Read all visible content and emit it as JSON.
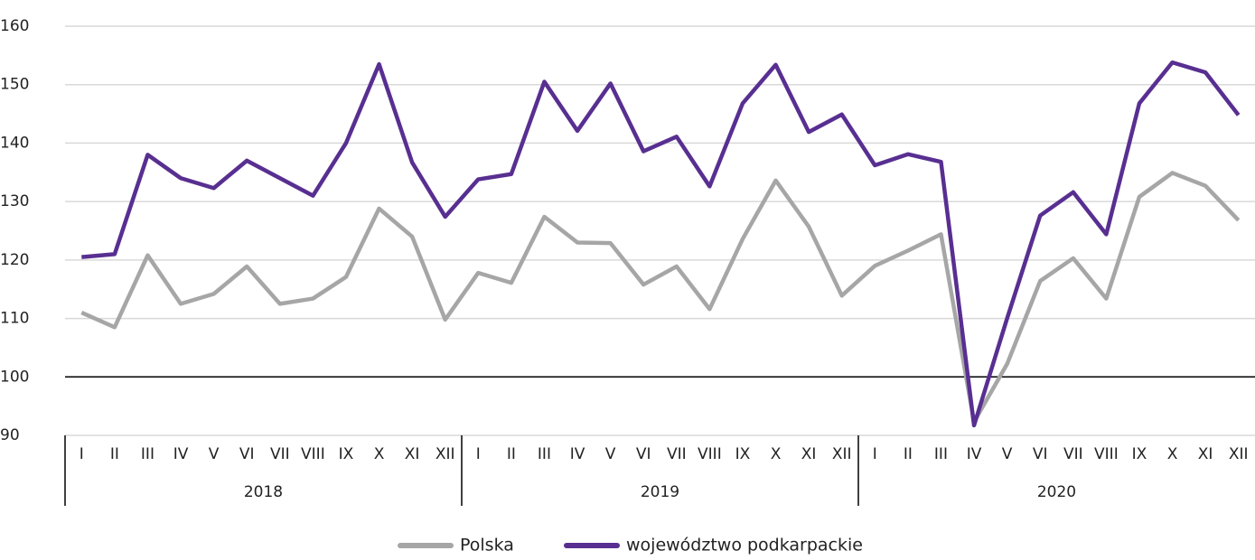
{
  "chart_data": {
    "type": "line",
    "categories": [
      "I",
      "II",
      "III",
      "IV",
      "V",
      "VI",
      "VII",
      "VIII",
      "IX",
      "X",
      "XI",
      "XII",
      "I",
      "II",
      "III",
      "IV",
      "V",
      "VI",
      "VII",
      "VIII",
      "IX",
      "X",
      "XI",
      "XII",
      "I",
      "II",
      "III",
      "IV",
      "V",
      "VI",
      "VII",
      "VIII",
      "IX",
      "X",
      "XI",
      "XII"
    ],
    "year_groups": [
      "2018",
      "2019",
      "2020"
    ],
    "series": [
      {
        "name": "Polska",
        "color": "#a6a6a6",
        "values": [
          111,
          108.5,
          120.8,
          112.5,
          114.2,
          118.9,
          112.5,
          113.4,
          117.1,
          128.8,
          124,
          109.8,
          117.8,
          116.1,
          127.4,
          123,
          122.9,
          115.8,
          118.9,
          111.6,
          123.6,
          133.6,
          125.7,
          113.9,
          119,
          121.6,
          124.4,
          92.3,
          102.2,
          116.4,
          120.3,
          113.4,
          130.8,
          134.9,
          132.7,
          126.8
        ]
      },
      {
        "name": "województwo podkarpackie",
        "color": "#582f91",
        "values": [
          120.5,
          121,
          138,
          134,
          132.3,
          137,
          134,
          131,
          140,
          153.5,
          136.7,
          127.4,
          133.8,
          134.7,
          150.5,
          142.1,
          150.2,
          138.6,
          141.1,
          132.6,
          146.8,
          153.4,
          141.9,
          144.9,
          136.2,
          138.1,
          136.8,
          91.7,
          110,
          127.6,
          131.6,
          124.4,
          146.8,
          153.8,
          152.1,
          144.8
        ]
      }
    ],
    "ylim": [
      90,
      160
    ],
    "yticks": [
      90,
      100,
      110,
      120,
      130,
      140,
      150,
      160
    ],
    "baseline": 100,
    "grid": true,
    "legend": "bottom"
  }
}
